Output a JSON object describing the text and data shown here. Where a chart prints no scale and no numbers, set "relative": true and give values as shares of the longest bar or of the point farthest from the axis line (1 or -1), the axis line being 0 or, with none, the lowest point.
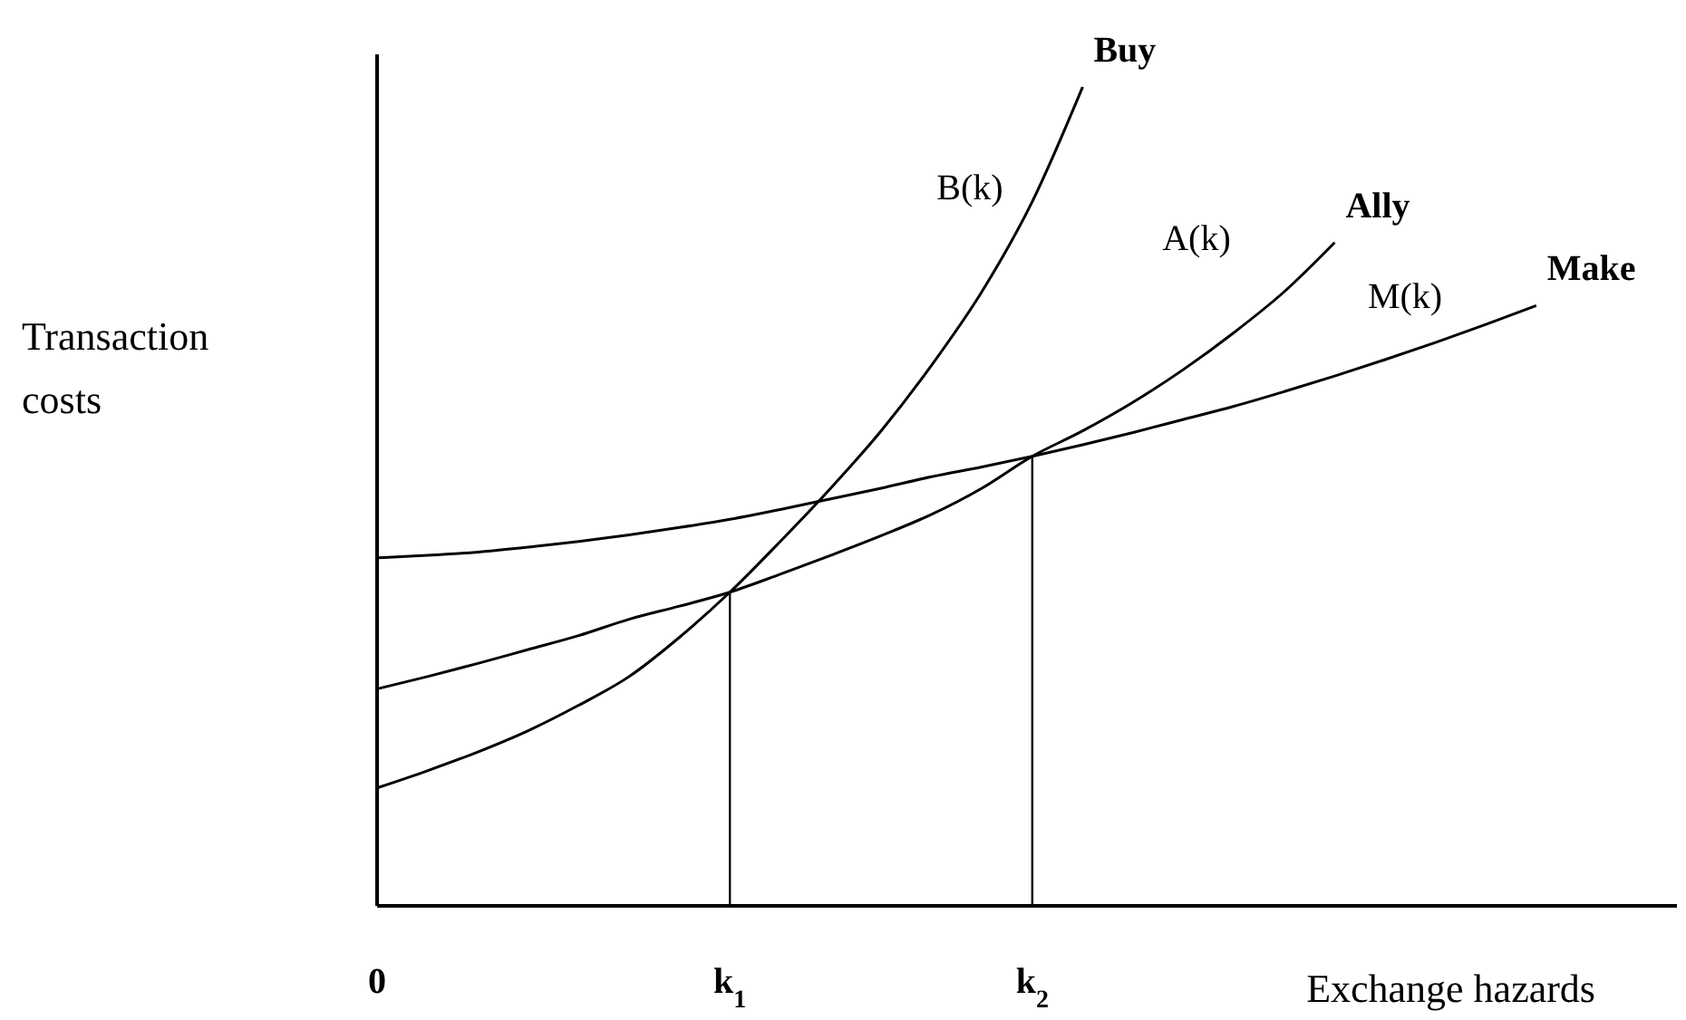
{
  "chart_data": {
    "type": "line",
    "relative": true,
    "xlabel": "Exchange hazards",
    "ylabel": "Transaction costs",
    "categories": [
      "0",
      null,
      null,
      null,
      null,
      null,
      null,
      "k$_{1}$",
      null,
      null,
      null,
      null,
      null,
      "k$_{2}$",
      null,
      null,
      null,
      null,
      null,
      null,
      null,
      null,
      null,
      null,
      null,
      null
    ],
    "series": [
      {
        "name": "Buy",
        "color": "#000000",
        "values": [
          0.144,
          0.165,
          0.188,
          0.214,
          0.245,
          0.28,
          0.328,
          0.383,
          0.445,
          0.51,
          0.58,
          0.66,
          0.75,
          0.86,
          1.0,
          null,
          null,
          null,
          null,
          null,
          null,
          null,
          null,
          null,
          null,
          null
        ]
      },
      {
        "name": "Ally",
        "color": "#000000",
        "values": [
          0.265,
          0.28,
          0.296,
          0.313,
          0.33,
          0.35,
          0.366,
          0.383,
          0.405,
          0.428,
          0.452,
          0.478,
          0.51,
          0.549,
          0.58,
          0.615,
          0.655,
          0.7,
          0.75,
          0.81,
          null,
          null,
          null,
          null,
          null,
          null
        ]
      },
      {
        "name": "Make",
        "color": "#000000",
        "values": [
          0.425,
          0.428,
          0.432,
          0.438,
          0.445,
          0.453,
          0.462,
          0.472,
          0.484,
          0.497,
          0.51,
          0.524,
          0.536,
          0.549,
          0.563,
          0.578,
          0.594,
          0.61,
          0.628,
          0.647,
          0.667,
          0.688,
          0.71,
          0.733,
          null,
          null
        ]
      }
    ],
    "ref_lines": [
      {
        "axis": "x",
        "value": "k$_{1}$",
        "color": "#000000"
      },
      {
        "axis": "x",
        "value": "k$_{2}$",
        "color": "#000000"
      }
    ],
    "annotations": [
      "B(k)",
      "A(k)",
      "M(k)"
    ]
  }
}
